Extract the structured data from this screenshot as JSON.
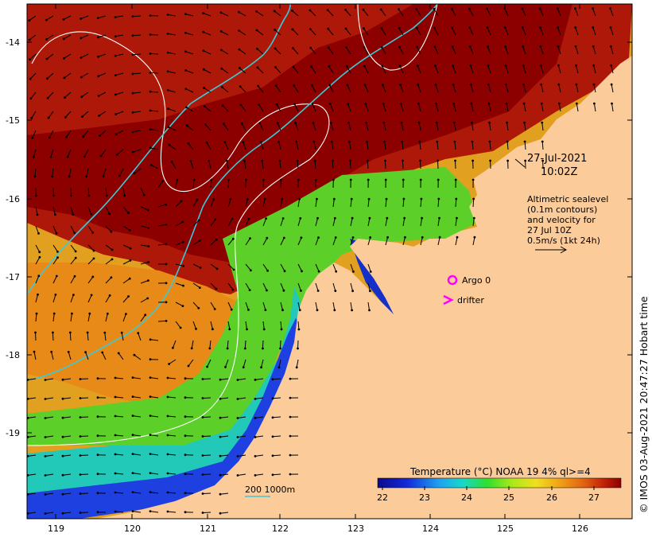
{
  "map": {
    "date": "27-Jul-2021",
    "time": "10:02Z",
    "info_lines": [
      "Altimetric sealevel",
      "(0.1m contours)",
      "and velocity for",
      "27 Jul 10Z",
      "0.5m/s (1kt 24h)"
    ],
    "argo_label": "Argo 0",
    "drifter_label": "drifter",
    "depth_legend": "200  1000m",
    "colorbar_title": "Temperature (°C) NOAA 19 4% ql>=4",
    "colorbar_ticks": [
      "22",
      "23",
      "24",
      "25",
      "26",
      "27"
    ],
    "lat_labels": [
      "-14",
      "-15",
      "-16",
      "-17",
      "-18",
      "-19"
    ],
    "lon_labels": [
      "119",
      "120",
      "121",
      "122",
      "123",
      "124",
      "125",
      "126"
    ],
    "credit": "© IMOS 03-Aug-2021 20:47:27 Hobart time",
    "colors": {
      "land": "#fccb9a",
      "isobath": "#3fc8d6",
      "contour": "#ffffff",
      "marker": "#ff00ff",
      "arrow": "#000000"
    },
    "icons": [
      "argo-float-icon",
      "drifter-chevron-icon",
      "velocity-arrow-icon"
    ]
  }
}
